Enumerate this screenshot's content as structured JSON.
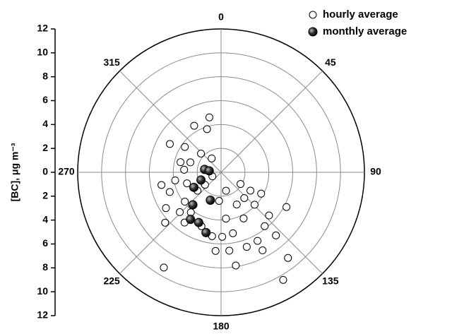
{
  "chart_data": {
    "type": "polar_scatter",
    "ylabel": "[BC], μg m⁻³",
    "rlim": [
      0,
      12
    ],
    "rticks": [
      2,
      4,
      6,
      8,
      10,
      12
    ],
    "angle_ticks": [
      0,
      45,
      90,
      135,
      180,
      225,
      270,
      315
    ],
    "ylim": [
      -12,
      12
    ],
    "yticks": [
      {
        "value": -12,
        "label": "12"
      },
      {
        "value": -10,
        "label": "10"
      },
      {
        "value": -8,
        "label": "8"
      },
      {
        "value": -6,
        "label": "6"
      },
      {
        "value": -4,
        "label": "4"
      },
      {
        "value": -2,
        "label": "2"
      },
      0,
      2,
      4,
      6,
      8,
      10,
      12
    ],
    "grid": true,
    "legend": "top-right",
    "series": [
      {
        "name": "hourly average",
        "color": "#000000",
        "fill": "#ffffff",
        "theta": [
          299,
          305,
          342,
          348,
          330,
          313,
          288,
          284,
          274,
          260,
          252,
          232,
          245,
          258,
          249,
          231,
          237,
          226,
          228,
          216,
          200,
          188,
          179,
          169,
          154,
          134,
          118,
          122,
          154,
          174,
          174,
          171,
          141,
          132,
          152,
          118,
          142,
          150,
          211,
          161,
          139,
          184,
          121,
          326,
          152,
          184,
          217,
          232,
          138,
          165
        ],
        "r": [
          4.9,
          3.7,
          3.8,
          4.7,
          4.5,
          2.3,
          2.7,
          3.5,
          3.1,
          3.9,
          3.0,
          2.5,
          0.8,
          5.1,
          4.6,
          3.9,
          5.5,
          4.8,
          6.3,
          5.2,
          4.8,
          5.4,
          5.4,
          5.2,
          4.3,
          3.9,
          3.8,
          2.9,
          3.0,
          3.9,
          6.6,
          7.9,
          5.8,
          5.4,
          7.4,
          6.2,
          9.1,
          10.4,
          9.3,
          6.6,
          7.0,
          2.4,
          1.9,
          1.4,
          6.5,
          6.6,
          4.2,
          1.7,
          2.9,
          1.6
        ]
      },
      {
        "name": "monthly average",
        "color": "#000000",
        "fill": "#222222",
        "theta": [
          280,
          277,
          249,
          241,
          221,
          213,
          204,
          201,
          194
        ],
        "r": [
          1.4,
          1.0,
          1.8,
          2.6,
          3.6,
          4.7,
          4.6,
          2.5,
          5.2
        ]
      }
    ]
  }
}
